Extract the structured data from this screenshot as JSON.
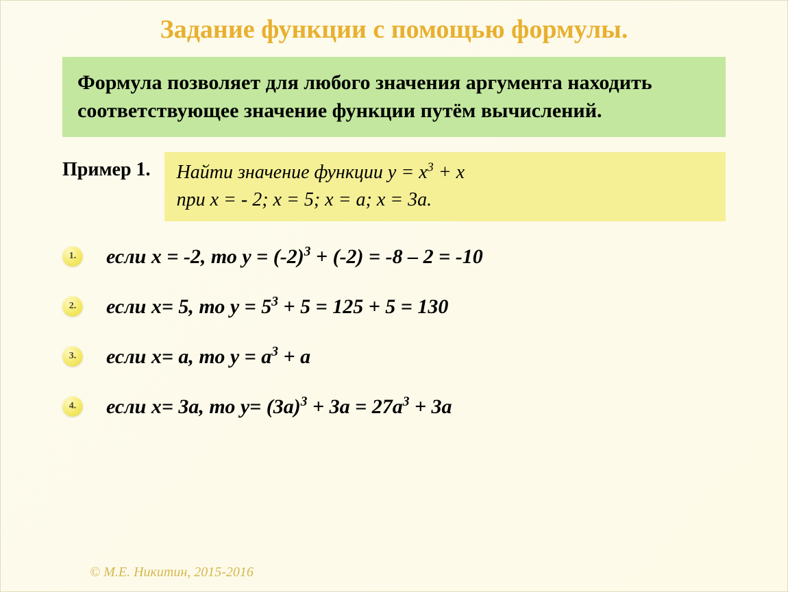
{
  "colors": {
    "background": "#fdfae8",
    "title": "#e8b030",
    "box_green": "#c3e79f",
    "box_yellow": "#f5f096",
    "bullet_fill": "#f5e968",
    "copyright": "#d4b850"
  },
  "title": "Задание функции с помощью формулы.",
  "definition": "Формула позволяет для любого значения аргумента находить соответствующее значение  функции путём вычислений.",
  "example": {
    "label": "Пример 1.",
    "task_line1": "Найти значение функции y = x³ + x",
    "task_line2": "при  x = - 2; x = 5; x = a; x = 3a."
  },
  "steps": [
    {
      "n": "1.",
      "text": "если x = -2, то y = (-2)³ + (-2) = -8 – 2 = -10"
    },
    {
      "n": "2.",
      "text": "если x= 5, то y = 5³ + 5 = 125 + 5 = 130"
    },
    {
      "n": "3.",
      "text": "если x= a, то y = a³ + a"
    },
    {
      "n": "4.",
      "text": "если x= 3a, то y= (3a)³ + 3a = 27a³ + 3a"
    }
  ],
  "copyright": "© М.Е. Никитин, 2015-2016"
}
